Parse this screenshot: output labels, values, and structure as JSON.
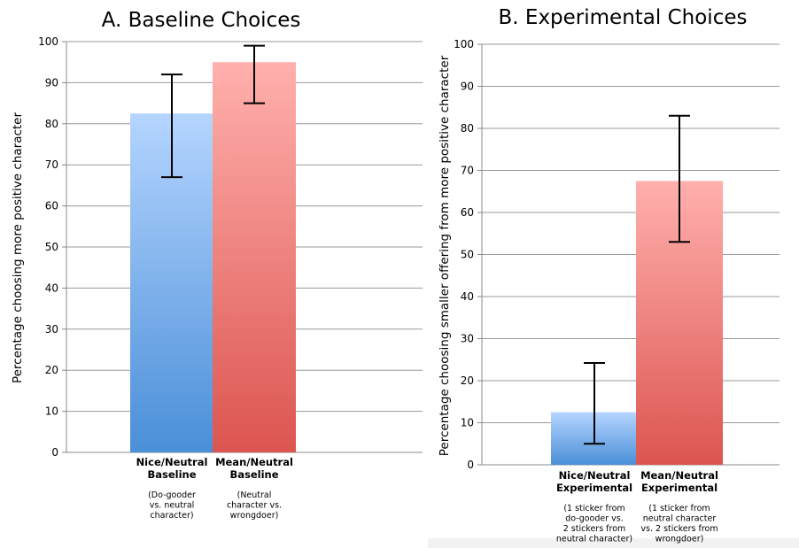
{
  "chart_data": [
    {
      "type": "bar",
      "title": "A. Baseline Choices",
      "ylabel": "Percentage choosing more positive character",
      "xlabel": "",
      "ylim": [
        0,
        100
      ],
      "yticks": [
        0,
        10,
        20,
        30,
        40,
        50,
        60,
        70,
        80,
        90,
        100
      ],
      "grid": true,
      "categories": [
        {
          "label": [
            "Nice/Neutral",
            "Baseline"
          ],
          "note": [
            "(Do-gooder",
            "vs. neutral",
            "character)"
          ]
        },
        {
          "label": [
            "Mean/Neutral",
            "Baseline"
          ],
          "note": [
            "(Neutral",
            "character vs.",
            "wrongdoer)"
          ]
        }
      ],
      "values": [
        82.5,
        95
      ],
      "error_low": [
        67,
        85
      ],
      "error_high": [
        92,
        99
      ],
      "colors": [
        "#4a8fd8",
        "#e0544f"
      ]
    },
    {
      "type": "bar",
      "title": "B. Experimental Choices",
      "ylabel": "Percentage choosing smaller offering from more positive character",
      "xlabel": "",
      "ylim": [
        0,
        100
      ],
      "yticks": [
        0,
        10,
        20,
        30,
        40,
        50,
        60,
        70,
        80,
        90,
        100
      ],
      "grid": true,
      "categories": [
        {
          "label": [
            "Nice/Neutral",
            "Experimental"
          ],
          "note": [
            "(1 sticker from",
            "do-gooder vs.",
            "2 stickers from",
            "neutral character)"
          ]
        },
        {
          "label": [
            "Mean/Neutral",
            "Experimental"
          ],
          "note": [
            "(1 sticker from",
            "neutral character",
            "vs. 2 stickers from",
            "wrongdoer)"
          ]
        }
      ],
      "values": [
        12.5,
        67.5
      ],
      "error_low": [
        5,
        53
      ],
      "error_high": [
        24.2,
        83
      ],
      "colors": [
        "#4a8fd8",
        "#e0544f"
      ]
    }
  ]
}
